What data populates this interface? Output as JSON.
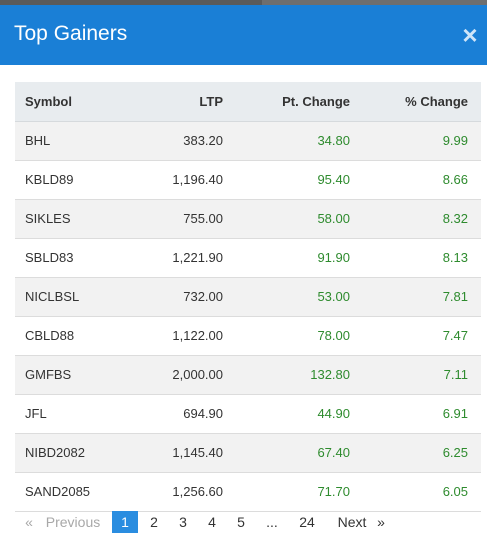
{
  "dialog": {
    "title": "Top Gainers",
    "close_glyph": "×",
    "header_color": "#1a7fd6"
  },
  "table": {
    "headers": {
      "symbol": "Symbol",
      "ltp": "LTP",
      "pt_change": "Pt. Change",
      "pct_change": "% Change"
    },
    "rows": [
      {
        "symbol": "BHL",
        "ltp": "383.20",
        "pt_change": "34.80",
        "pct_change": "9.99"
      },
      {
        "symbol": "KBLD89",
        "ltp": "1,196.40",
        "pt_change": "95.40",
        "pct_change": "8.66"
      },
      {
        "symbol": "SIKLES",
        "ltp": "755.00",
        "pt_change": "58.00",
        "pct_change": "8.32"
      },
      {
        "symbol": "SBLD83",
        "ltp": "1,221.90",
        "pt_change": "91.90",
        "pct_change": "8.13"
      },
      {
        "symbol": "NICLBSL",
        "ltp": "732.00",
        "pt_change": "53.00",
        "pct_change": "7.81"
      },
      {
        "symbol": "CBLD88",
        "ltp": "1,122.00",
        "pt_change": "78.00",
        "pct_change": "7.47"
      },
      {
        "symbol": "GMFBS",
        "ltp": "2,000.00",
        "pt_change": "132.80",
        "pct_change": "7.11"
      },
      {
        "symbol": "JFL",
        "ltp": "694.90",
        "pt_change": "44.90",
        "pct_change": "6.91"
      },
      {
        "symbol": "NIBD2082",
        "ltp": "1,145.40",
        "pt_change": "67.40",
        "pct_change": "6.25"
      },
      {
        "symbol": "SAND2085",
        "ltp": "1,256.60",
        "pt_change": "71.70",
        "pct_change": "6.05"
      }
    ],
    "positive_color": "#2e8b2e"
  },
  "pagination": {
    "prev_arrow": "«",
    "previous": "Previous",
    "pages": [
      "1",
      "2",
      "3",
      "4",
      "5"
    ],
    "ellipsis": "...",
    "last_page": "24",
    "next": "Next",
    "next_arrow": "»",
    "current_page": "1"
  }
}
